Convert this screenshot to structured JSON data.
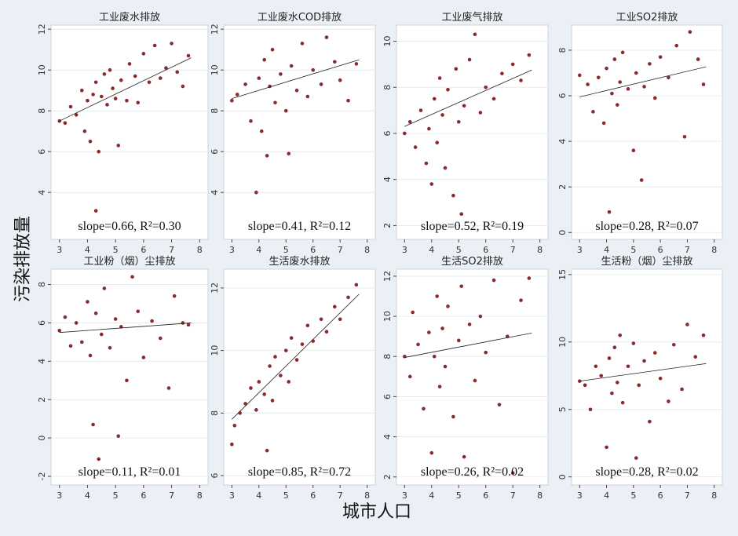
{
  "ylabel": "污染排放量",
  "xlabel": "城市人口",
  "chart_data": [
    {
      "type": "scatter",
      "title": "工业废水排放",
      "color": "#8b2a2a",
      "annotation": "slope=0.66, R²=0.30",
      "xlim": [
        2.7,
        8.3
      ],
      "xticks": [
        3,
        4,
        5,
        6,
        7,
        8
      ],
      "ylim": [
        1.7,
        12.2
      ],
      "yticks": [
        4,
        6,
        8,
        10,
        12
      ],
      "x": [
        3.0,
        3.2,
        3.4,
        3.6,
        3.8,
        3.9,
        4.0,
        4.1,
        4.2,
        4.3,
        4.3,
        4.4,
        4.5,
        4.6,
        4.7,
        4.8,
        4.9,
        5.0,
        5.1,
        5.2,
        5.4,
        5.5,
        5.7,
        5.8,
        6.0,
        6.2,
        6.4,
        6.6,
        6.8,
        7.0,
        7.2,
        7.4,
        7.6
      ],
      "values": [
        7.5,
        7.4,
        8.2,
        7.8,
        9.0,
        7.0,
        8.5,
        6.5,
        8.8,
        3.1,
        9.4,
        6.0,
        8.7,
        9.8,
        8.3,
        10.0,
        9.1,
        8.6,
        6.3,
        9.5,
        8.5,
        10.3,
        9.7,
        8.4,
        10.8,
        9.4,
        11.2,
        9.6,
        10.1,
        11.3,
        9.9,
        9.2,
        10.7
      ],
      "fit_x": [
        3,
        7.7
      ],
      "fit_y": [
        7.5,
        10.6
      ]
    },
    {
      "type": "scatter",
      "title": "工业废水COD排放",
      "color": "#8b2a2a",
      "annotation": "slope=0.41, R²=0.12",
      "xlim": [
        2.7,
        8.3
      ],
      "xticks": [
        3,
        4,
        5,
        6,
        7,
        8
      ],
      "ylim": [
        1.7,
        12.2
      ],
      "yticks": [
        4,
        6,
        8,
        10,
        12
      ],
      "x": [
        3.0,
        3.2,
        3.5,
        3.7,
        3.9,
        4.0,
        4.1,
        4.2,
        4.3,
        4.4,
        4.5,
        4.6,
        4.8,
        5.0,
        5.1,
        5.2,
        5.4,
        5.6,
        5.8,
        6.0,
        6.3,
        6.5,
        6.8,
        7.0,
        7.3,
        7.6
      ],
      "values": [
        8.5,
        8.8,
        9.3,
        7.5,
        4.0,
        9.6,
        7.0,
        10.5,
        5.8,
        9.2,
        11.0,
        8.4,
        9.8,
        8.0,
        5.9,
        10.2,
        9.0,
        11.3,
        8.7,
        10.0,
        9.3,
        11.6,
        10.4,
        9.5,
        8.5,
        10.3
      ],
      "fit_x": [
        3,
        7.7
      ],
      "fit_y": [
        8.6,
        10.5
      ]
    },
    {
      "type": "scatter",
      "title": "工业废气排放",
      "color": "#8b2a2a",
      "annotation": "slope=0.52, R²=0.19",
      "xlim": [
        2.7,
        8.3
      ],
      "xticks": [
        3,
        4,
        5,
        6,
        7,
        8
      ],
      "ylim": [
        1.4,
        10.7
      ],
      "yticks": [
        2,
        4,
        6,
        8,
        10
      ],
      "x": [
        3.0,
        3.2,
        3.4,
        3.6,
        3.8,
        3.9,
        4.0,
        4.1,
        4.2,
        4.3,
        4.4,
        4.5,
        4.6,
        4.8,
        4.9,
        5.0,
        5.1,
        5.2,
        5.4,
        5.6,
        5.8,
        6.0,
        6.3,
        6.6,
        7.0,
        7.3,
        7.6
      ],
      "values": [
        6.0,
        6.5,
        5.4,
        7.0,
        4.7,
        6.2,
        3.8,
        7.5,
        5.6,
        8.4,
        6.8,
        4.5,
        7.9,
        3.3,
        8.8,
        6.5,
        2.5,
        7.2,
        9.2,
        10.3,
        6.9,
        8.0,
        7.5,
        8.6,
        9.0,
        8.3,
        9.4
      ],
      "fit_x": [
        3,
        7.7
      ],
      "fit_y": [
        6.3,
        8.75
      ]
    },
    {
      "type": "scatter",
      "title": "工业SO2排放",
      "color": "#8b2a2a",
      "annotation": "slope=0.28, R²=0.07",
      "xlim": [
        2.7,
        8.3
      ],
      "xticks": [
        3,
        4,
        5,
        6,
        7,
        8
      ],
      "ylim": [
        -0.3,
        9.1
      ],
      "yticks": [
        0,
        2,
        4,
        6,
        8
      ],
      "x": [
        3.0,
        3.3,
        3.5,
        3.7,
        3.9,
        4.0,
        4.1,
        4.2,
        4.3,
        4.4,
        4.5,
        4.6,
        4.8,
        5.0,
        5.1,
        5.3,
        5.4,
        5.6,
        5.8,
        6.0,
        6.3,
        6.6,
        6.9,
        7.1,
        7.4,
        7.6
      ],
      "values": [
        6.9,
        6.5,
        5.3,
        6.8,
        4.8,
        7.2,
        0.9,
        6.1,
        7.6,
        5.6,
        6.6,
        7.9,
        6.3,
        3.6,
        7.0,
        2.3,
        6.4,
        7.4,
        5.9,
        7.7,
        6.8,
        8.2,
        4.2,
        8.8,
        7.6,
        6.5
      ],
      "fit_x": [
        3,
        7.7
      ],
      "fit_y": [
        5.95,
        7.27
      ]
    },
    {
      "type": "scatter",
      "title": "工业粉（烟）尘排放",
      "color": "#8b2a2a",
      "annotation": "slope=0.11, R²=0.01",
      "xlim": [
        2.7,
        8.3
      ],
      "xticks": [
        3,
        4,
        5,
        6,
        7,
        8
      ],
      "ylim": [
        -2.45,
        8.8
      ],
      "yticks": [
        -2,
        0,
        2,
        4,
        6,
        8
      ],
      "x": [
        3.0,
        3.2,
        3.4,
        3.6,
        3.8,
        4.0,
        4.1,
        4.2,
        4.3,
        4.4,
        4.5,
        4.6,
        4.8,
        5.0,
        5.1,
        5.2,
        5.4,
        5.6,
        5.8,
        6.0,
        6.3,
        6.6,
        6.9,
        7.1,
        7.4,
        7.6
      ],
      "values": [
        5.6,
        6.3,
        4.8,
        6.0,
        5.0,
        7.1,
        4.3,
        0.7,
        6.5,
        -1.1,
        5.4,
        7.8,
        4.7,
        6.2,
        0.1,
        5.8,
        3.0,
        8.4,
        6.6,
        4.2,
        6.1,
        5.2,
        2.6,
        7.4,
        6.0,
        5.9
      ],
      "fit_x": [
        3,
        7.7
      ],
      "fit_y": [
        5.5,
        6.0
      ]
    },
    {
      "type": "scatter",
      "title": "生活废水排放",
      "color": "#8b2a2a",
      "annotation": "slope=0.85, R²=0.72",
      "xlim": [
        2.7,
        8.3
      ],
      "xticks": [
        3,
        4,
        5,
        6,
        7,
        8
      ],
      "ylim": [
        5.7,
        12.6
      ],
      "yticks": [
        6,
        8,
        10,
        12
      ],
      "x": [
        3.0,
        3.1,
        3.3,
        3.5,
        3.7,
        3.9,
        4.0,
        4.2,
        4.3,
        4.4,
        4.5,
        4.6,
        4.8,
        5.0,
        5.1,
        5.2,
        5.4,
        5.6,
        5.8,
        6.0,
        6.3,
        6.5,
        6.8,
        7.0,
        7.3,
        7.6
      ],
      "values": [
        7.0,
        7.6,
        8.0,
        8.3,
        8.8,
        8.1,
        9.0,
        8.6,
        6.8,
        9.5,
        8.4,
        9.8,
        9.2,
        10.0,
        9.0,
        10.4,
        9.7,
        10.2,
        10.8,
        10.3,
        11.0,
        10.6,
        11.4,
        11.0,
        11.7,
        12.1
      ],
      "fit_x": [
        3,
        7.7
      ],
      "fit_y": [
        7.8,
        11.8
      ]
    },
    {
      "type": "scatter",
      "title": "生活SO2排放",
      "color": "#8b2a2a",
      "annotation": "slope=0.26, R²=0.02",
      "xlim": [
        2.7,
        8.3
      ],
      "xticks": [
        3,
        4,
        5,
        6,
        7,
        8
      ],
      "ylim": [
        1.6,
        12.35
      ],
      "yticks": [
        2,
        4,
        6,
        8,
        10,
        12
      ],
      "x": [
        3.0,
        3.2,
        3.3,
        3.5,
        3.7,
        3.9,
        4.0,
        4.1,
        4.2,
        4.3,
        4.4,
        4.5,
        4.6,
        4.8,
        5.0,
        5.1,
        5.2,
        5.4,
        5.6,
        5.8,
        6.0,
        6.3,
        6.5,
        6.8,
        7.0,
        7.3,
        7.6
      ],
      "values": [
        8.0,
        7.0,
        10.2,
        8.6,
        5.4,
        9.2,
        3.2,
        8.0,
        11.0,
        6.5,
        9.4,
        7.5,
        10.5,
        5.0,
        8.8,
        11.5,
        3.0,
        9.6,
        6.8,
        10.0,
        8.2,
        11.8,
        5.6,
        9.0,
        2.2,
        10.8,
        11.9
      ],
      "fit_x": [
        3,
        7.7
      ],
      "fit_y": [
        7.95,
        9.17
      ]
    },
    {
      "type": "scatter",
      "title": "生活粉（烟）尘排放",
      "color": "#8b2a2a",
      "annotation": "slope=0.28, R²=0.02",
      "xlim": [
        2.7,
        8.3
      ],
      "xticks": [
        3,
        4,
        5,
        6,
        7,
        8
      ],
      "ylim": [
        -0.6,
        15.4
      ],
      "yticks": [
        0,
        5,
        10,
        15
      ],
      "x": [
        3.0,
        3.2,
        3.4,
        3.6,
        3.8,
        4.0,
        4.1,
        4.2,
        4.3,
        4.4,
        4.5,
        4.6,
        4.8,
        5.0,
        5.1,
        5.2,
        5.4,
        5.6,
        5.8,
        6.0,
        6.3,
        6.5,
        6.8,
        7.0,
        7.3,
        7.6
      ],
      "values": [
        7.1,
        6.8,
        5.0,
        8.2,
        7.5,
        2.2,
        8.8,
        6.2,
        9.6,
        7.0,
        10.5,
        5.5,
        8.2,
        9.9,
        1.4,
        6.8,
        8.6,
        4.1,
        9.2,
        7.3,
        5.6,
        9.8,
        6.5,
        11.3,
        8.9,
        10.5
      ],
      "fit_x": [
        3,
        7.7
      ],
      "fit_y": [
        7.1,
        8.4
      ]
    }
  ]
}
